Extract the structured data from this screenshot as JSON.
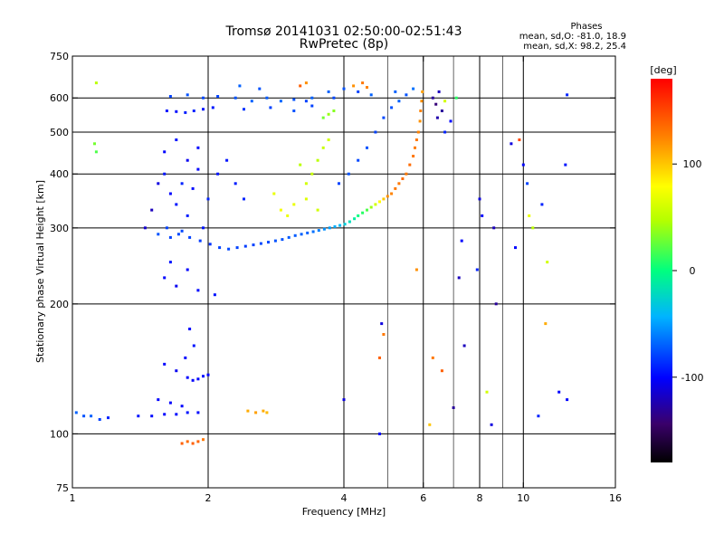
{
  "chart_data": {
    "type": "scatter",
    "title": "Tromsø 20141031 02:50:00-02:51:43",
    "subtitle": "RwPretec (8p)",
    "xlabel": "Frequency [MHz]",
    "ylabel": "Stationary phase Virtual Height [km]",
    "x_scale": "log",
    "y_scale": "log",
    "xlim": [
      1,
      16
    ],
    "ylim": [
      75,
      750
    ],
    "xticks": [
      1,
      2,
      4,
      6,
      8,
      10,
      16
    ],
    "xtick_labels": [
      "1",
      "2",
      "4",
      "6",
      "8",
      "10",
      "16"
    ],
    "x_gridlines": [
      2,
      4,
      6,
      8,
      10
    ],
    "x_minor_gridlines": [
      5,
      7,
      9
    ],
    "yticks": [
      75,
      100,
      200,
      300,
      400,
      500,
      600,
      750
    ],
    "ytick_labels": [
      "75",
      "100",
      "200",
      "300",
      "400",
      "500",
      "600",
      "750"
    ],
    "y_gridlines": [
      100,
      200,
      300,
      400,
      500,
      600
    ],
    "stats": {
      "title": "Phases",
      "line1": "mean, sd,O: -81.0, 18.9",
      "line2": "mean, sd,X:  98.2, 25.4"
    },
    "colorbar": {
      "label": "[deg]",
      "range": [
        -180,
        180
      ],
      "ticks": [
        100,
        0,
        -100
      ],
      "tick_labels": [
        "100",
        "0",
        "-100"
      ]
    },
    "series": [
      {
        "values": [
          [
            1.62,
            560,
            -95
          ],
          [
            1.7,
            558,
            -98
          ],
          [
            1.78,
            555,
            -92
          ],
          [
            1.86,
            560,
            -90
          ],
          [
            1.95,
            565,
            -95
          ],
          [
            2.05,
            570,
            -93
          ],
          [
            1.65,
            605,
            -80
          ],
          [
            1.8,
            610,
            -75
          ],
          [
            1.95,
            600,
            -78
          ],
          [
            2.1,
            605,
            -80
          ],
          [
            2.3,
            600,
            -75
          ],
          [
            2.5,
            590,
            -70
          ],
          [
            2.7,
            600,
            -72
          ],
          [
            2.9,
            590,
            -68
          ],
          [
            3.1,
            595,
            -75
          ],
          [
            3.3,
            590,
            -80
          ],
          [
            2.35,
            640,
            -70
          ],
          [
            2.6,
            630,
            -75
          ],
          [
            3.4,
            600,
            -70
          ],
          [
            3.7,
            620,
            -70
          ],
          [
            4.0,
            630,
            -75
          ],
          [
            4.3,
            620,
            -80
          ],
          [
            4.6,
            610,
            -70
          ],
          [
            5.2,
            620,
            -70
          ],
          [
            5.7,
            630,
            -65
          ],
          [
            2.4,
            565,
            -85
          ],
          [
            2.75,
            570,
            -80
          ],
          [
            3.1,
            560,
            -75
          ],
          [
            3.4,
            575,
            -80
          ],
          [
            3.8,
            600,
            -78
          ],
          [
            1.6,
            400,
            -95
          ],
          [
            1.65,
            360,
            -100
          ],
          [
            1.7,
            340,
            -95
          ],
          [
            1.75,
            380,
            -90
          ],
          [
            1.8,
            320,
            -92
          ],
          [
            1.85,
            370,
            -98
          ],
          [
            1.9,
            410,
            -100
          ],
          [
            1.95,
            300,
            -95
          ],
          [
            2.0,
            350,
            -90
          ],
          [
            1.6,
            450,
            -100
          ],
          [
            1.7,
            480,
            -95
          ],
          [
            1.8,
            430,
            -105
          ],
          [
            1.9,
            460,
            -100
          ],
          [
            1.55,
            380,
            -110
          ],
          [
            1.5,
            330,
            -120
          ],
          [
            1.45,
            300,
            -115
          ],
          [
            2.1,
            400,
            -95
          ],
          [
            2.2,
            430,
            -95
          ],
          [
            2.3,
            380,
            -92
          ],
          [
            2.4,
            350,
            -90
          ],
          [
            1.62,
            300,
            -80
          ],
          [
            1.72,
            290,
            -78
          ],
          [
            1.82,
            285,
            -80
          ],
          [
            1.92,
            280,
            -82
          ],
          [
            2.02,
            275,
            -85
          ],
          [
            2.12,
            270,
            -80
          ],
          [
            2.22,
            268,
            -78
          ],
          [
            2.32,
            270,
            -80
          ],
          [
            2.42,
            272,
            -82
          ],
          [
            2.52,
            274,
            -80
          ],
          [
            2.62,
            276,
            -78
          ],
          [
            2.72,
            278,
            -78
          ],
          [
            2.82,
            280,
            -75
          ],
          [
            2.92,
            282,
            -75
          ],
          [
            3.02,
            285,
            -72
          ],
          [
            3.12,
            288,
            -72
          ],
          [
            3.22,
            290,
            -70
          ],
          [
            3.32,
            292,
            -70
          ],
          [
            3.42,
            294,
            -65
          ],
          [
            3.52,
            296,
            -60
          ],
          [
            3.62,
            298,
            -55
          ],
          [
            3.72,
            300,
            -50
          ],
          [
            3.82,
            302,
            -45
          ],
          [
            3.92,
            304,
            -40
          ],
          [
            4.02,
            306,
            -30
          ],
          [
            4.12,
            310,
            -20
          ],
          [
            4.22,
            315,
            -10
          ],
          [
            4.3,
            320,
            0
          ],
          [
            4.4,
            325,
            10
          ],
          [
            4.5,
            330,
            20
          ],
          [
            4.6,
            335,
            40
          ],
          [
            4.7,
            340,
            60
          ],
          [
            4.8,
            345,
            80
          ],
          [
            4.9,
            350,
            100
          ],
          [
            5.0,
            355,
            120
          ],
          [
            5.1,
            360,
            125
          ],
          [
            5.2,
            370,
            130
          ],
          [
            5.3,
            380,
            130
          ],
          [
            5.4,
            390,
            135
          ],
          [
            5.5,
            400,
            130
          ],
          [
            5.6,
            420,
            135
          ],
          [
            5.7,
            440,
            130
          ],
          [
            5.75,
            460,
            128
          ],
          [
            5.8,
            480,
            130
          ],
          [
            5.85,
            500,
            125
          ],
          [
            5.9,
            530,
            120
          ],
          [
            5.92,
            560,
            125
          ],
          [
            5.95,
            590,
            120
          ],
          [
            5.97,
            620,
            115
          ],
          [
            3.9,
            380,
            -80
          ],
          [
            4.1,
            400,
            -75
          ],
          [
            4.3,
            430,
            -78
          ],
          [
            4.5,
            460,
            -75
          ],
          [
            4.7,
            500,
            -80
          ],
          [
            4.9,
            540,
            -78
          ],
          [
            5.1,
            570,
            -75
          ],
          [
            5.3,
            590,
            -70
          ],
          [
            5.5,
            610,
            -75
          ],
          [
            3.3,
            380,
            60
          ],
          [
            3.4,
            400,
            55
          ],
          [
            3.5,
            430,
            50
          ],
          [
            3.6,
            460,
            55
          ],
          [
            3.7,
            480,
            60
          ],
          [
            3.2,
            420,
            50
          ],
          [
            3.1,
            340,
            70
          ],
          [
            3.3,
            350,
            65
          ],
          [
            3.5,
            330,
            60
          ],
          [
            3.6,
            540,
            30
          ],
          [
            3.8,
            560,
            35
          ],
          [
            3.7,
            550,
            40
          ],
          [
            2.8,
            360,
            70
          ],
          [
            2.9,
            330,
            75
          ],
          [
            3.0,
            320,
            70
          ],
          [
            1.55,
            290,
            -75
          ],
          [
            1.65,
            285,
            -80
          ],
          [
            1.75,
            295,
            -78
          ],
          [
            1.6,
            230,
            -100
          ],
          [
            1.7,
            220,
            -105
          ],
          [
            1.8,
            240,
            -100
          ],
          [
            1.9,
            215,
            -98
          ],
          [
            1.65,
            250,
            -95
          ],
          [
            1.82,
            175,
            -100
          ],
          [
            1.86,
            160,
            -95
          ],
          [
            1.78,
            150,
            -100
          ],
          [
            1.7,
            140,
            -105
          ],
          [
            1.6,
            145,
            -100
          ],
          [
            1.8,
            135,
            -100
          ],
          [
            1.85,
            133,
            -102
          ],
          [
            1.9,
            134,
            -100
          ],
          [
            1.95,
            136,
            -98
          ],
          [
            2.0,
            137,
            -100
          ],
          [
            1.4,
            110,
            -95
          ],
          [
            1.5,
            110,
            -98
          ],
          [
            1.6,
            111,
            -100
          ],
          [
            1.7,
            111,
            -98
          ],
          [
            1.8,
            112,
            -95
          ],
          [
            1.9,
            112,
            -98
          ],
          [
            1.55,
            120,
            -100
          ],
          [
            1.65,
            118,
            -102
          ],
          [
            1.75,
            116,
            -100
          ],
          [
            1.02,
            112,
            -70
          ],
          [
            1.06,
            110,
            -75
          ],
          [
            1.1,
            110,
            -70
          ],
          [
            1.15,
            108,
            -80
          ],
          [
            1.2,
            109,
            -90
          ],
          [
            2.45,
            113,
            110
          ],
          [
            2.55,
            112,
            115
          ],
          [
            2.65,
            113,
            110
          ],
          [
            2.7,
            112,
            105
          ],
          [
            1.75,
            95,
            140
          ],
          [
            1.8,
            96,
            135
          ],
          [
            1.85,
            95,
            140
          ],
          [
            1.9,
            96,
            138
          ],
          [
            1.95,
            97,
            130
          ],
          [
            6.3,
            600,
            -130
          ],
          [
            6.4,
            580,
            -140
          ],
          [
            6.5,
            620,
            -120
          ],
          [
            6.6,
            560,
            -130
          ],
          [
            6.45,
            540,
            -125
          ],
          [
            6.7,
            590,
            60
          ],
          [
            7.1,
            600,
            10
          ],
          [
            1.13,
            450,
            20
          ],
          [
            1.12,
            470,
            30
          ],
          [
            1.13,
            650,
            50
          ],
          [
            4.2,
            640,
            120
          ],
          [
            4.4,
            650,
            130
          ],
          [
            4.5,
            635,
            125
          ],
          [
            3.2,
            640,
            140
          ],
          [
            3.3,
            650,
            120
          ],
          [
            10.2,
            380,
            -80
          ],
          [
            10.3,
            320,
            70
          ],
          [
            10.5,
            300,
            50
          ],
          [
            9.8,
            480,
            150
          ],
          [
            7.3,
            280,
            -100
          ],
          [
            7.2,
            230,
            -120
          ],
          [
            8.0,
            350,
            -110
          ],
          [
            8.1,
            320,
            -100
          ],
          [
            7.9,
            240,
            -90
          ],
          [
            8.6,
            300,
            -120
          ],
          [
            8.7,
            200,
            -130
          ],
          [
            11.0,
            340,
            -90
          ],
          [
            11.2,
            180,
            110
          ],
          [
            12.5,
            610,
            -90
          ],
          [
            12.4,
            420,
            -95
          ],
          [
            12.5,
            120,
            -100
          ],
          [
            4.8,
            150,
            140
          ],
          [
            4.9,
            170,
            130
          ],
          [
            4.85,
            180,
            -110
          ],
          [
            6.3,
            150,
            130
          ],
          [
            6.6,
            140,
            140
          ],
          [
            6.2,
            105,
            100
          ],
          [
            7.4,
            160,
            -120
          ],
          [
            7.0,
            115,
            -130
          ],
          [
            8.3,
            125,
            60
          ],
          [
            8.5,
            105,
            -110
          ],
          [
            10.0,
            420,
            -100
          ],
          [
            10.8,
            110,
            -90
          ],
          [
            4.0,
            120,
            -110
          ],
          [
            4.8,
            100,
            -100
          ],
          [
            2.07,
            210,
            -95
          ],
          [
            6.9,
            530,
            -100
          ],
          [
            6.7,
            500,
            -90
          ],
          [
            5.8,
            240,
            120
          ],
          [
            11.3,
            250,
            60
          ],
          [
            9.6,
            270,
            -100
          ],
          [
            9.4,
            470,
            -110
          ],
          [
            12.0,
            125,
            -100
          ]
        ]
      }
    ]
  }
}
